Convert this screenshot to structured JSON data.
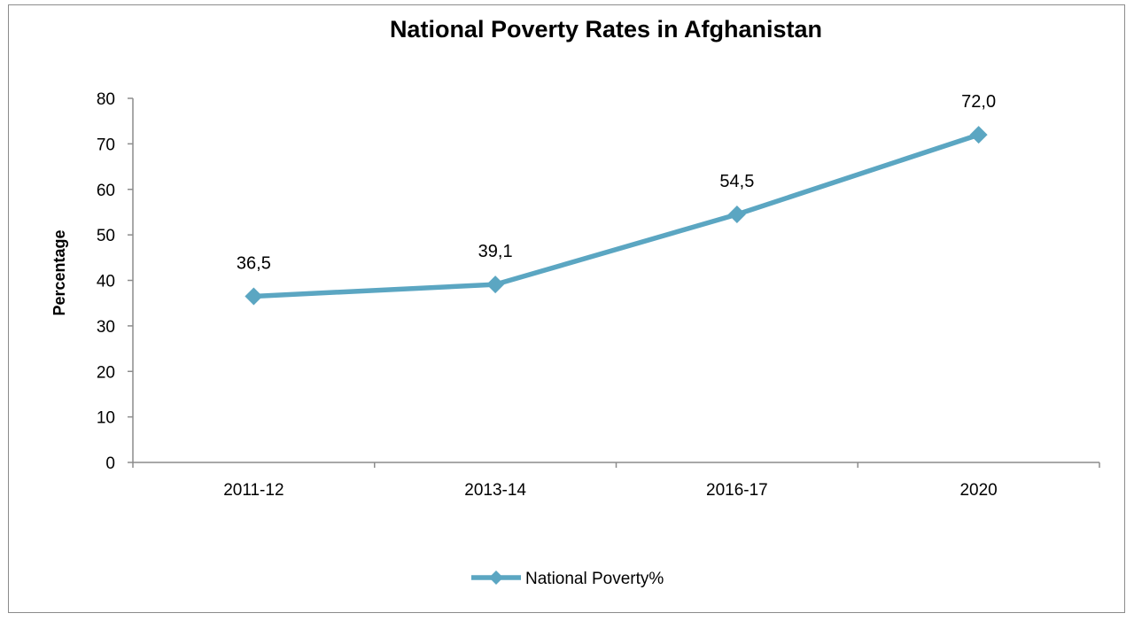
{
  "chart_data": {
    "type": "line",
    "title": "National Poverty Rates in Afghanistan",
    "xlabel": "",
    "ylabel": "Percentage",
    "categories": [
      "2011-12",
      "2013-14",
      "2016-17",
      "2020"
    ],
    "series": [
      {
        "name": "National Poverty%",
        "values": [
          36.5,
          39.1,
          54.5,
          72.0
        ],
        "labels": [
          "36,5",
          "39,1",
          "54,5",
          "72,0"
        ],
        "color": "#5ba6c2",
        "marker": "diamond"
      }
    ],
    "ylim": [
      0,
      80
    ],
    "yticks": [
      0,
      10,
      20,
      30,
      40,
      50,
      60,
      70,
      80
    ],
    "grid": false,
    "legend_position": "bottom"
  }
}
